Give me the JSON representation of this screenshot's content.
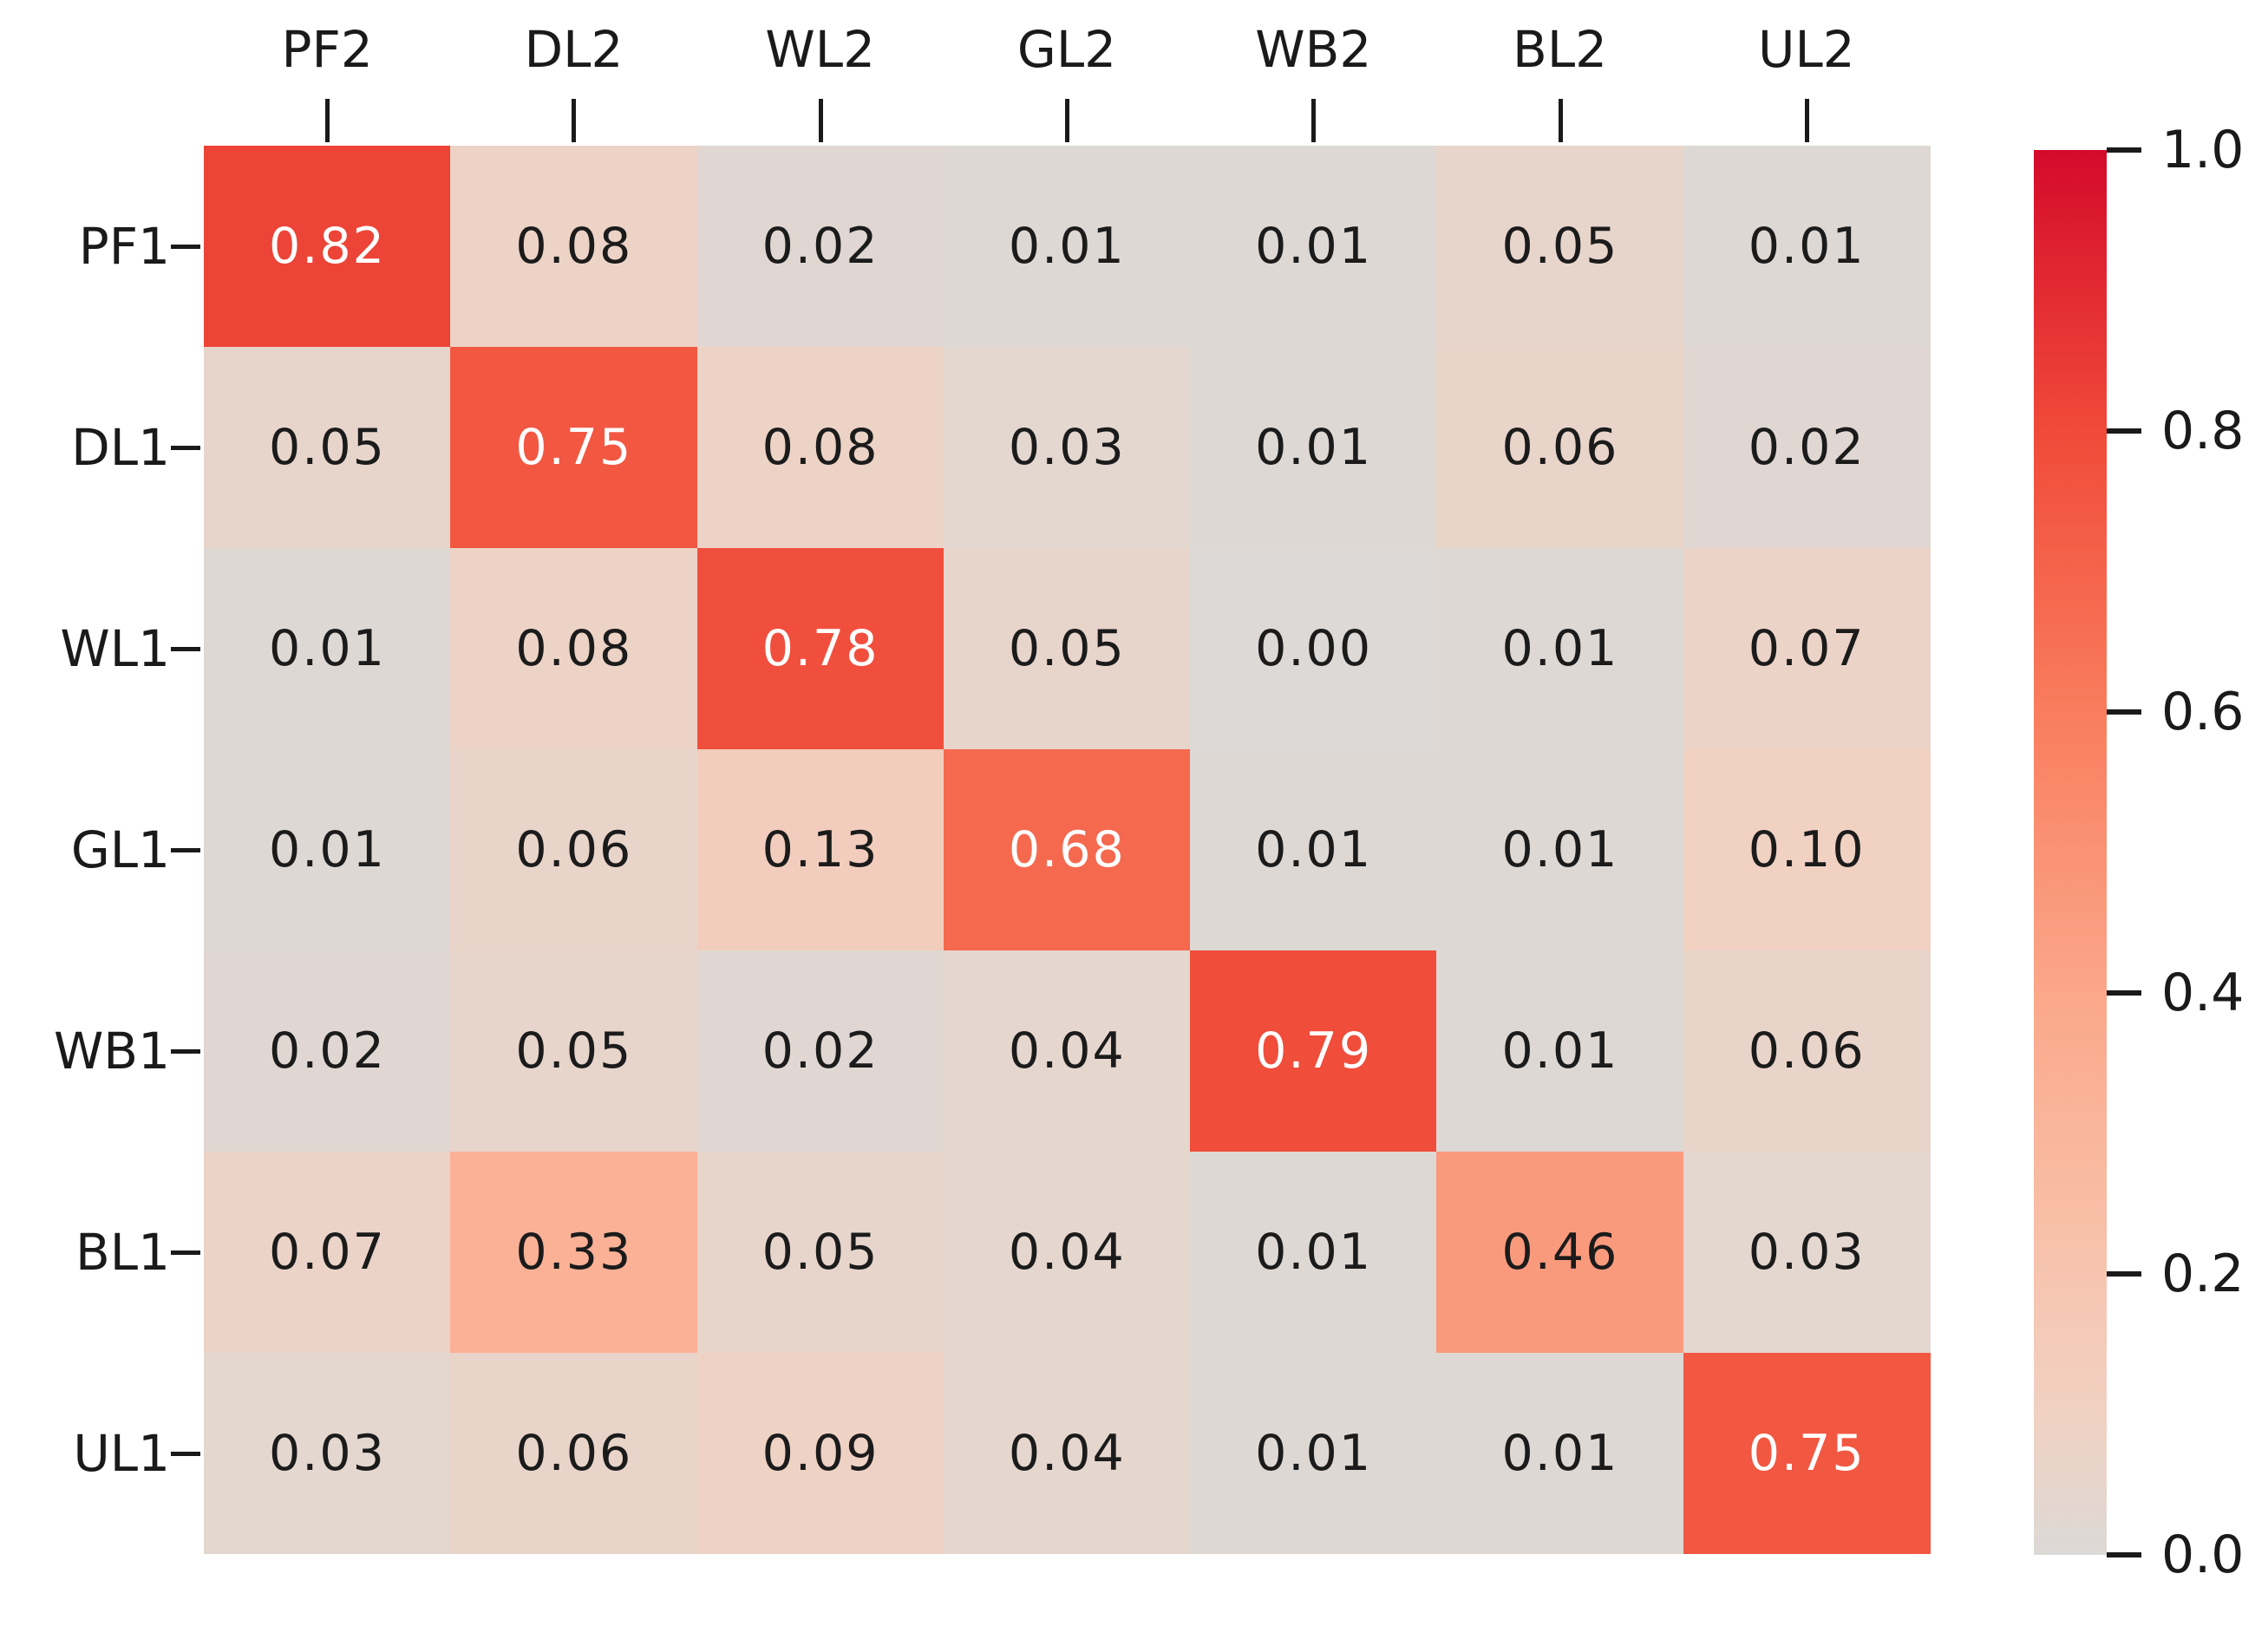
{
  "chart_data": {
    "type": "heatmap",
    "title": "",
    "xlabel": "",
    "ylabel": "",
    "x_tick_labels": [
      "PF2",
      "DL2",
      "WL2",
      "GL2",
      "WB2",
      "BL2",
      "UL2"
    ],
    "y_tick_labels": [
      "PF1",
      "DL1",
      "WL1",
      "GL1",
      "WB1",
      "BL1",
      "UL1"
    ],
    "values": [
      [
        0.82,
        0.08,
        0.02,
        0.01,
        0.01,
        0.05,
        0.01
      ],
      [
        0.05,
        0.75,
        0.08,
        0.03,
        0.01,
        0.06,
        0.02
      ],
      [
        0.01,
        0.08,
        0.78,
        0.05,
        0.0,
        0.01,
        0.07
      ],
      [
        0.01,
        0.06,
        0.13,
        0.68,
        0.01,
        0.01,
        0.1
      ],
      [
        0.02,
        0.05,
        0.02,
        0.04,
        0.79,
        0.01,
        0.06
      ],
      [
        0.07,
        0.33,
        0.05,
        0.04,
        0.01,
        0.46,
        0.03
      ],
      [
        0.03,
        0.06,
        0.09,
        0.04,
        0.01,
        0.01,
        0.75
      ]
    ],
    "annotation_decimals": 2,
    "grid": false,
    "legend_position": "right-colorbar",
    "colorbar": {
      "min": 0.0,
      "max": 1.0,
      "tick_labels": [
        "1.0",
        "0.8",
        "0.6",
        "0.4",
        "0.2",
        "0.0"
      ],
      "tick_values": [
        1.0,
        0.8,
        0.6,
        0.4,
        0.2,
        0.0
      ]
    },
    "colormap_stops": [
      [
        0.0,
        "#dcd9d6"
      ],
      [
        0.05,
        "#e7d5cc"
      ],
      [
        0.1,
        "#f0d1c2"
      ],
      [
        0.15,
        "#f4cbba"
      ],
      [
        0.25,
        "#f8bda4"
      ],
      [
        0.4,
        "#fba78a"
      ],
      [
        0.6,
        "#f97d5e"
      ],
      [
        0.8,
        "#f04a39"
      ],
      [
        1.0,
        "#d40a2b"
      ]
    ],
    "annotation_colors": {
      "dark_text": "#1b1b1b",
      "light_text": "#ffffff",
      "light_text_threshold": 0.6
    },
    "axis_tick_color": "#1a1a1a"
  }
}
